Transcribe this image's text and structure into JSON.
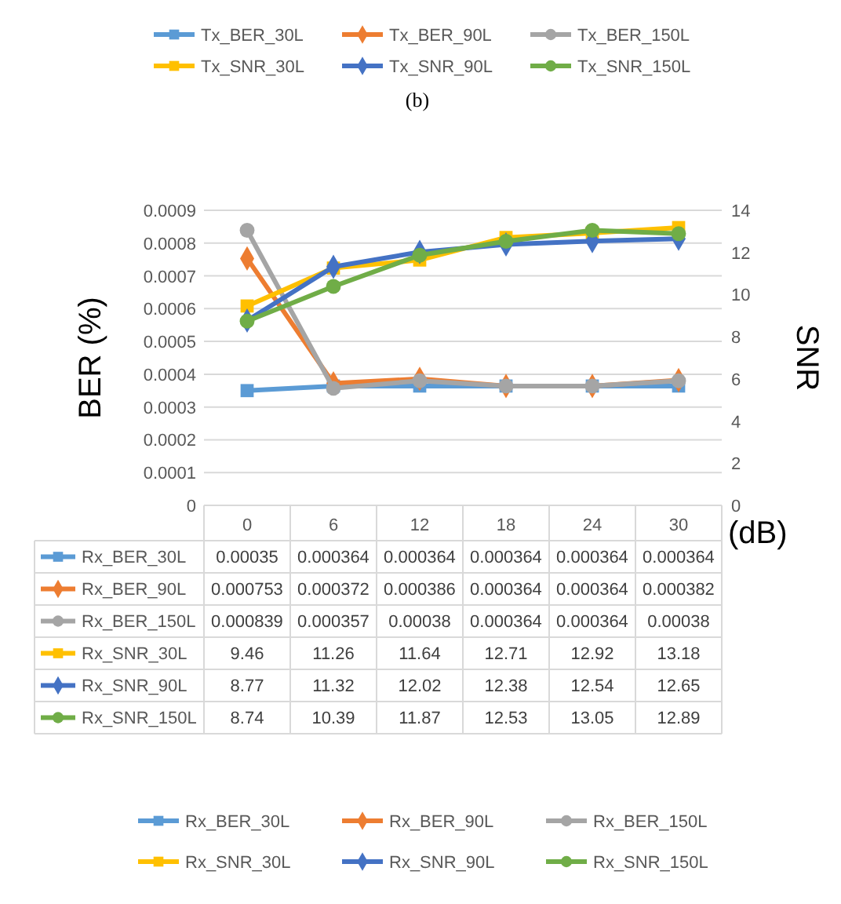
{
  "chart_data": [
    {
      "type": "other",
      "legend": "top",
      "annotations": [
        "(b)"
      ],
      "series": [
        {
          "name": "Tx_BER_30L",
          "color": "#5b9bd5",
          "marker": "square"
        },
        {
          "name": "Tx_BER_90L",
          "color": "#ed7d31",
          "marker": "diamond"
        },
        {
          "name": "Tx_BER_150L",
          "color": "#a5a5a5",
          "marker": "circle"
        },
        {
          "name": "Tx_SNR_30L",
          "color": "#ffc000",
          "marker": "square"
        },
        {
          "name": "Tx_SNR_90L",
          "color": "#4472c4",
          "marker": "diamond"
        },
        {
          "name": "Tx_SNR_150L",
          "color": "#70ad47",
          "marker": "circle"
        }
      ]
    },
    {
      "type": "line",
      "xlabel": "(dB)",
      "ylabel": "BER (%)",
      "y2label": "SNR",
      "categories": [
        "0",
        "6",
        "12",
        "18",
        "24",
        "30"
      ],
      "ylim": [
        0,
        0.0009
      ],
      "yticks": [
        0,
        0.0001,
        0.0002,
        0.0003,
        0.0004,
        0.0005,
        0.0006,
        0.0007,
        0.0008,
        0.0009
      ],
      "y2lim": [
        0,
        14
      ],
      "y2ticks": [
        0,
        2,
        4,
        6,
        8,
        10,
        12,
        14
      ],
      "grid": "y",
      "legend": "bottom",
      "data_labels": true,
      "series": [
        {
          "name": "Rx_BER_30L",
          "color": "#5b9bd5",
          "marker": "square",
          "values": [
            0.00035,
            0.000364,
            0.000364,
            0.000364,
            0.000364,
            0.000364
          ]
        },
        {
          "name": "Rx_BER_90L",
          "color": "#ed7d31",
          "marker": "diamond",
          "values": [
            0.000753,
            0.000372,
            0.000386,
            0.000364,
            0.000364,
            0.000382
          ]
        },
        {
          "name": "Rx_BER_150L",
          "color": "#a5a5a5",
          "marker": "circle",
          "values": [
            0.000839,
            0.000357,
            0.00038,
            0.000364,
            0.000364,
            0.00038
          ]
        },
        {
          "name": "Rx_SNR_30L",
          "color": "#ffc000",
          "marker": "square",
          "axis": "y2",
          "values": [
            9.46,
            11.26,
            11.64,
            12.71,
            12.92,
            13.18
          ]
        },
        {
          "name": "Rx_SNR_90L",
          "color": "#4472c4",
          "marker": "diamond",
          "axis": "y2",
          "values": [
            8.77,
            11.32,
            12.02,
            12.38,
            12.54,
            12.65
          ]
        },
        {
          "name": "Rx_SNR_150L",
          "color": "#70ad47",
          "marker": "circle",
          "axis": "y2",
          "values": [
            8.74,
            10.39,
            11.87,
            12.53,
            13.05,
            12.89
          ]
        }
      ]
    }
  ]
}
